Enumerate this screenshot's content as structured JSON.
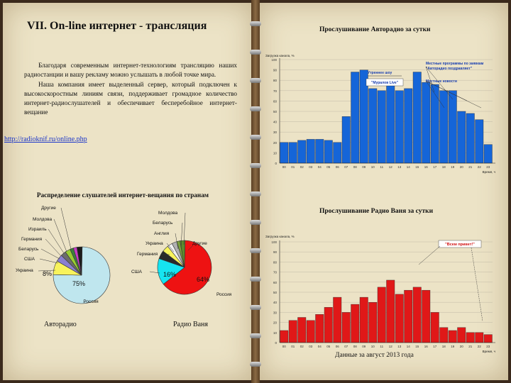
{
  "slide": {
    "title": "VII. On-line интернет - трансляция",
    "body_paragraphs": [
      "Благодаря современным интернет-технологиям трансляцию наших радиостанции и вашу рекламу можно услышать в любой точке мира.",
      "Наша компания имеет выделенный сервер, который подключен к высокоскоростным линиям связи, поддерживает громадное количество интернет-радиослушателей и обеспечивает бесперебойное интернет-вещание"
    ],
    "link": "http://radioknif.ru/online.php",
    "pie_section_title": "Распределение слушателей интернет-вещания по странам",
    "right_title_1": "Прослушивание Авторадио за сутки",
    "right_title_2": "Прослушивание Радио Ваня за сутки",
    "footnote": "Данные за август 2013 года"
  },
  "colors": {
    "bar_blue": "#1565d8",
    "bar_red": "#e01818",
    "pie_light_blue": "#bfe6ee",
    "pie_cyan": "#16e4f0",
    "pie_red": "#ee1212",
    "pie_yellow": "#f8f35c"
  },
  "chart_data": [
    {
      "type": "pie",
      "caption": "Авторадио",
      "labels": [
        "Россия",
        "Украина",
        "США",
        "Беларусь",
        "Германия",
        "Израиль",
        "Молдова",
        "Другие"
      ],
      "values": [
        75,
        8,
        4,
        3,
        3,
        2,
        2,
        3
      ],
      "data_labels": [
        "75%",
        "8%",
        "",
        "",
        "",
        "",
        "",
        ""
      ],
      "colors": [
        "#bfe6ee",
        "#f8f35c",
        "#8a7fd0",
        "#6c6c6c",
        "#9acd32",
        "#3c7f3c",
        "#c83cc8",
        "#1c1c1c"
      ]
    },
    {
      "type": "pie",
      "caption": "Радио Ваня",
      "labels": [
        "Россия",
        "США",
        "Германия",
        "Украина",
        "Англия",
        "Беларусь",
        "Молдова",
        "Другие"
      ],
      "values": [
        64,
        16,
        5,
        4,
        3,
        3,
        2,
        3
      ],
      "data_labels": [
        "64%",
        "16%",
        "",
        "",
        "",
        "",
        "",
        ""
      ],
      "colors": [
        "#ee1212",
        "#16e4f0",
        "#2a2a2a",
        "#f8f35c",
        "#f0f0f0",
        "#b0b0b0",
        "#7aa03c",
        "#5c8a2c"
      ]
    },
    {
      "type": "bar",
      "title": "Прослушивание Авторадио за сутки",
      "ylabel": "Загрузка канала, %",
      "ylim": [
        0,
        100
      ],
      "yticks": [
        0,
        10,
        20,
        30,
        40,
        50,
        60,
        70,
        80,
        90,
        100
      ],
      "categories": [
        "00",
        "01",
        "02",
        "03",
        "04",
        "05",
        "06",
        "07",
        "08",
        "09",
        "10",
        "11",
        "12",
        "13",
        "14",
        "15",
        "16",
        "17",
        "18",
        "19",
        "20",
        "21",
        "22",
        "23"
      ],
      "values": [
        20,
        20,
        22,
        23,
        23,
        22,
        20,
        45,
        88,
        90,
        72,
        70,
        76,
        70,
        72,
        88,
        78,
        76,
        70,
        70,
        50,
        48,
        42,
        18
      ],
      "xlabel": "Время, ч",
      "annotations": [
        "Утреннее шоу",
        "\"Муралов Live\"",
        "Местные программы по заявкам \"Авторадио поздравляет\"",
        "Местные новости"
      ]
    },
    {
      "type": "bar",
      "title": "Прослушивание Радио Ваня за сутки",
      "ylabel": "Загрузка канала, %",
      "ylim": [
        0,
        100
      ],
      "yticks": [
        0,
        10,
        20,
        30,
        40,
        50,
        60,
        70,
        80,
        90,
        100
      ],
      "categories": [
        "00",
        "01",
        "02",
        "03",
        "04",
        "05",
        "06",
        "07",
        "08",
        "09",
        "10",
        "11",
        "12",
        "13",
        "14",
        "15",
        "16",
        "17",
        "18",
        "19",
        "20",
        "21",
        "22",
        "23"
      ],
      "values": [
        12,
        22,
        25,
        22,
        28,
        35,
        45,
        30,
        38,
        45,
        40,
        55,
        62,
        48,
        52,
        55,
        52,
        30,
        15,
        12,
        15,
        10,
        10,
        8
      ],
      "xlabel": "Время, ч",
      "annotations": [
        "\"Всем привет!\""
      ]
    }
  ]
}
